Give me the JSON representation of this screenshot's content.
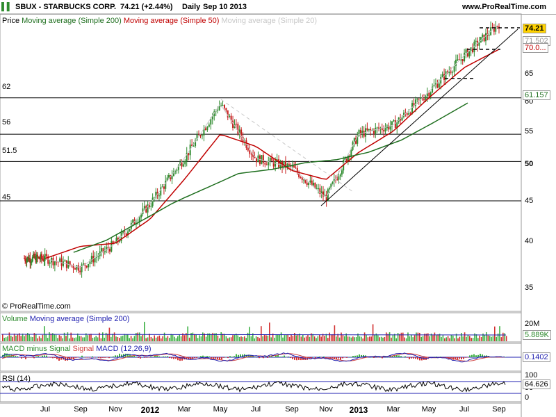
{
  "header": {
    "symbol": "SBUX - STARBUCKS CORP.",
    "price": "74.21 (+2.44%)",
    "period": "Daily",
    "date": "Sep 10 2013",
    "site": "www.ProRealTime.com"
  },
  "price_panel": {
    "legend_price": "Price",
    "legend_ma200": "Moving average (Simple 200)",
    "legend_ma50": "Moving average (Simple 50)",
    "legend_ma20": "Moving average (Simple 20)",
    "copyright": "© ProRealTime.com",
    "tag_price": "74.21",
    "tag_ma20": "71.502",
    "tag_ma50": "70.0...",
    "tag_ma200": "61.157",
    "hlines": [
      "62",
      "56",
      "51.5",
      "45"
    ],
    "yticks": [
      "35",
      "40",
      "45",
      "50",
      "55",
      "60",
      "65",
      "70"
    ]
  },
  "volume_panel": {
    "legend_volume": "Volume",
    "legend_ma": "Moving average (Simple 200)",
    "ytick": "20M",
    "tag": "5.889K"
  },
  "macd_panel": {
    "legend_a": "MACD minus Signal",
    "legend_b": "Signal",
    "legend_c": "MACD (12,26,9)",
    "tag": "0.1402"
  },
  "rsi_panel": {
    "legend": "RSI (14)",
    "yticks": [
      "100",
      "50",
      "0"
    ],
    "tag": "64.626"
  },
  "x_axis": {
    "labels": [
      "Jul",
      "Sep",
      "Nov",
      "2012",
      "Mar",
      "May",
      "Jul",
      "Sep",
      "Nov",
      "2013",
      "Mar",
      "May",
      "Jul",
      "Sep"
    ]
  },
  "colors": {
    "up_candle": "#2e8b2e",
    "down_candle": "#c81e1e",
    "ma200": "#1f6f1f",
    "ma50": "#c00000",
    "ma20": "#c8c8c8",
    "volume_up": "#3cb043",
    "volume_down": "#d23030",
    "macd_line": "#2020b0",
    "signal_line": "#d04040"
  },
  "chart_data": {
    "type": "line",
    "title": "SBUX - STARBUCKS CORP.",
    "series": [
      {
        "name": "Price",
        "x": [
          "Jul",
          "Sep",
          "Nov",
          "2012",
          "Mar",
          "May",
          "Jul",
          "Sep",
          "Nov",
          "2013",
          "Mar",
          "May",
          "Jul",
          "Sep"
        ],
        "values": [
          35.5,
          34,
          38,
          44.5,
          52,
          61,
          52,
          50.5,
          45.5,
          56,
          57.5,
          63,
          69,
          74.21
        ]
      },
      {
        "name": "Moving average (Simple 200)",
        "x": [
          "Sep",
          "Nov",
          "2012",
          "Mar",
          "May",
          "Jul",
          "Sep",
          "Nov",
          "2013",
          "Mar",
          "May",
          "Jul",
          "Sep"
        ],
        "values": [
          36.5,
          38.5,
          41.5,
          44.5,
          47,
          49.5,
          50.2,
          51.3,
          51.8,
          53,
          55,
          58,
          61.157
        ]
      },
      {
        "name": "Moving average (Simple 50)",
        "x": [
          "Jul",
          "Sep",
          "Nov",
          "2012",
          "Mar",
          "May",
          "Jul",
          "Sep",
          "Nov",
          "2013",
          "Mar",
          "May",
          "Jul",
          "Sep"
        ],
        "values": [
          35.5,
          37.5,
          38,
          42,
          48.5,
          56,
          54,
          50,
          48.5,
          53,
          56.5,
          62,
          67,
          70.0
        ]
      }
    ],
    "hlines": [
      62,
      56,
      51.5,
      45
    ],
    "ylim": [
      33,
      76
    ]
  }
}
